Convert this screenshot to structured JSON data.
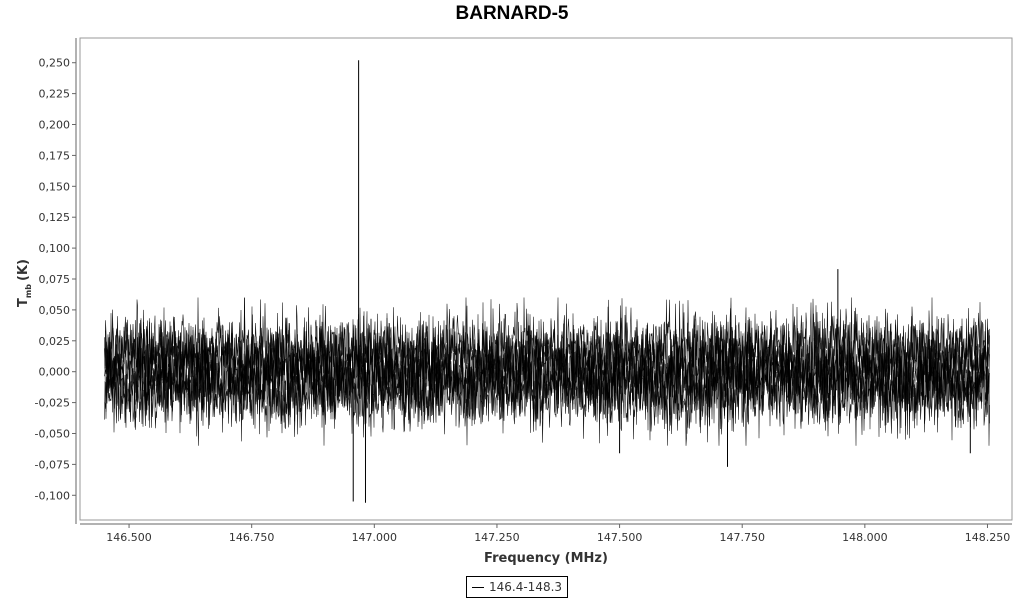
{
  "chart_data": {
    "type": "line",
    "title": "BARNARD-5",
    "xlabel": "Frequency (MHz)",
    "ylabel_main": "T",
    "ylabel_sub": "mb",
    "ylabel_unit": "(K)",
    "xlim": [
      146.4,
      148.3
    ],
    "ylim": [
      -0.12,
      0.27
    ],
    "x_ticks": [
      146.5,
      146.75,
      147.0,
      147.25,
      147.5,
      147.75,
      148.0,
      148.25
    ],
    "x_tick_labels": [
      "146.500",
      "146.750",
      "147.000",
      "147.250",
      "147.500",
      "147.750",
      "148.000",
      "148.250"
    ],
    "y_ticks": [
      -0.1,
      -0.075,
      -0.05,
      -0.025,
      0.0,
      0.025,
      0.05,
      0.075,
      0.1,
      0.125,
      0.15,
      0.175,
      0.2,
      0.225,
      0.25
    ],
    "y_tick_labels": [
      "-0,100",
      "-0,075",
      "-0,050",
      "-0,025",
      "0,000",
      "0,025",
      "0,050",
      "0,075",
      "0,100",
      "0,125",
      "0,150",
      "0,175",
      "0,200",
      "0,225",
      "0,250"
    ],
    "grid": false,
    "legend_position": "bottom-center",
    "series": [
      {
        "name": "146.4-148.3",
        "color": "#000000",
        "x_range": [
          146.45,
          148.255
        ],
        "noise_rms_K": 0.02,
        "features": [
          {
            "x": 146.968,
            "y": 0.252
          },
          {
            "x": 146.957,
            "y": -0.105
          },
          {
            "x": 146.982,
            "y": -0.106
          },
          {
            "x": 147.945,
            "y": 0.083
          },
          {
            "x": 147.72,
            "y": -0.077
          },
          {
            "x": 147.5,
            "y": -0.066
          },
          {
            "x": 148.215,
            "y": -0.066
          }
        ]
      }
    ]
  }
}
